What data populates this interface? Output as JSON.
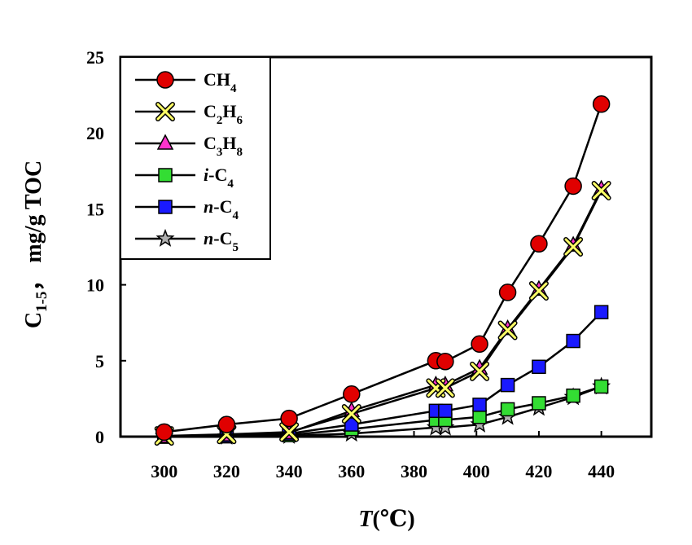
{
  "chart_data": {
    "type": "line",
    "xlabel": "T(℃)",
    "xlabel_parts": {
      "var": "T",
      "unit": "(℃)"
    },
    "ylabel": "C1-5， mg/g TOC",
    "ylabel_parts": {
      "main": "C",
      "sub": "1-5",
      "rest": "，  mg/g TOC"
    },
    "xlim": [
      286,
      456
    ],
    "ylim": [
      0,
      25
    ],
    "xticks": [
      300,
      320,
      340,
      360,
      380,
      400,
      420,
      440
    ],
    "yticks": [
      0,
      5,
      10,
      15,
      20,
      25
    ],
    "grid": false,
    "legend_position": "top-left",
    "x": [
      300,
      320,
      340,
      360,
      387,
      390,
      401,
      410,
      420,
      431,
      440
    ],
    "series": [
      {
        "name": "CH4",
        "label_parts": [
          {
            "t": "CH"
          },
          {
            "t": "4",
            "sub": true
          }
        ],
        "marker": "circle",
        "fill": "#e00000",
        "values": [
          0.3,
          0.8,
          1.2,
          2.8,
          5.0,
          4.95,
          6.1,
          9.5,
          12.7,
          16.5,
          21.9
        ]
      },
      {
        "name": "C2H6",
        "label_parts": [
          {
            "t": "C"
          },
          {
            "t": "2",
            "sub": true
          },
          {
            "t": "H"
          },
          {
            "t": "6",
            "sub": true
          }
        ],
        "marker": "x",
        "fill": "#ffff66",
        "values": [
          0.05,
          0.15,
          0.3,
          1.5,
          3.2,
          3.2,
          4.3,
          7.0,
          9.6,
          12.5,
          16.2
        ]
      },
      {
        "name": "C3H8",
        "label_parts": [
          {
            "t": "C"
          },
          {
            "t": "3",
            "sub": true
          },
          {
            "t": "H"
          },
          {
            "t": "8",
            "sub": true
          }
        ],
        "marker": "triangle",
        "fill": "#ff33cc",
        "values": [
          0.0,
          0.1,
          0.25,
          1.7,
          3.4,
          3.4,
          4.5,
          7.1,
          9.7,
          12.6,
          16.3
        ]
      },
      {
        "name": "i-C4",
        "label_parts": [
          {
            "t": "i",
            "italic": true
          },
          {
            "t": "-C"
          },
          {
            "t": "4",
            "sub": true
          }
        ],
        "marker": "square",
        "fill": "#33dd33",
        "values": [
          0.0,
          0.02,
          0.1,
          0.5,
          1.1,
          1.1,
          1.3,
          1.8,
          2.2,
          2.7,
          3.3
        ]
      },
      {
        "name": "n-C4",
        "label_parts": [
          {
            "t": "n",
            "italic": true
          },
          {
            "t": "-C"
          },
          {
            "t": "4",
            "sub": true
          }
        ],
        "marker": "square",
        "fill": "#1a1aff",
        "values": [
          0.0,
          0.05,
          0.2,
          0.8,
          1.7,
          1.7,
          2.1,
          3.4,
          4.6,
          6.3,
          8.2
        ]
      },
      {
        "name": "n-C5",
        "label_parts": [
          {
            "t": "n",
            "italic": true
          },
          {
            "t": "-C"
          },
          {
            "t": "5",
            "sub": true
          }
        ],
        "marker": "star",
        "fill": "#b0b0b0",
        "values": [
          0.0,
          0.0,
          0.05,
          0.2,
          0.6,
          0.6,
          0.8,
          1.3,
          1.9,
          2.6,
          3.3
        ]
      }
    ]
  }
}
